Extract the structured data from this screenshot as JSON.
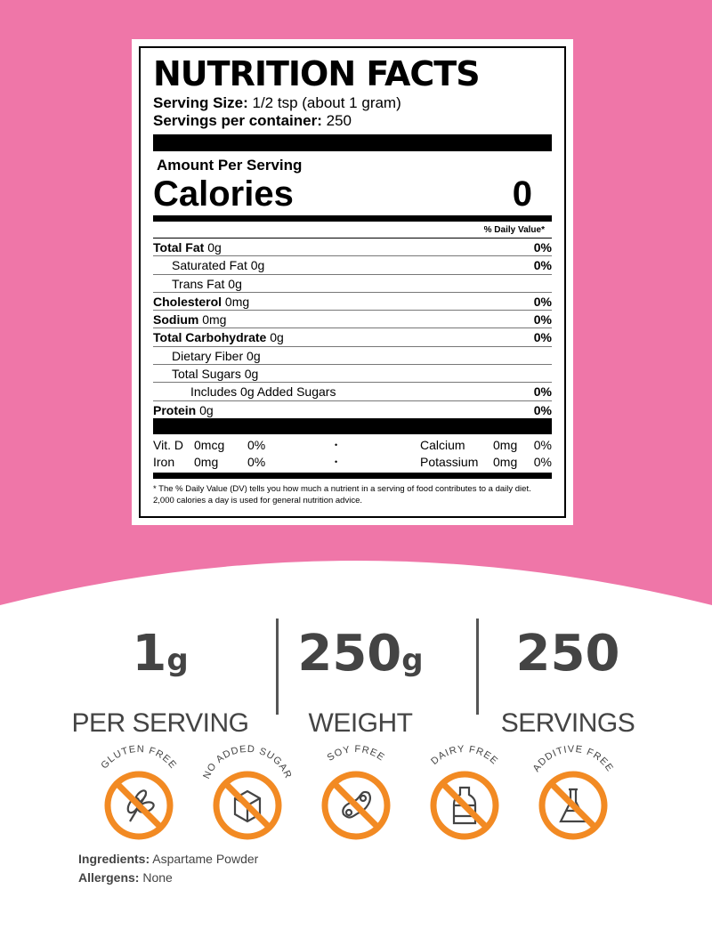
{
  "label": {
    "title": "NUTRITION FACTS",
    "serving_size_label": "Serving Size:",
    "serving_size": "1/2 tsp (about 1 gram)",
    "servings_label": "Servings per container:",
    "servings": "250",
    "amount_per_serving": "Amount Per Serving",
    "calories_label": "Calories",
    "calories": "0",
    "daily_value_header": "% Daily Value*",
    "rows": [
      {
        "name": "Total Fat",
        "amount": "0g",
        "dv": "0%",
        "indent": 0
      },
      {
        "name": "Saturated Fat",
        "amount": "0g",
        "dv": "0%",
        "indent": 1
      },
      {
        "name": "Trans Fat",
        "amount": "0g",
        "dv": "",
        "indent": 1
      },
      {
        "name": "Cholesterol",
        "amount": "0mg",
        "dv": "0%",
        "indent": 0
      },
      {
        "name": "Sodium",
        "amount": "0mg",
        "dv": "0%",
        "indent": 0
      },
      {
        "name": "Total Carbohydrate",
        "amount": "0g",
        "dv": "0%",
        "indent": 0
      },
      {
        "name": "Dietary Fiber",
        "amount": "0g",
        "dv": "",
        "indent": 1
      },
      {
        "name": "Total Sugars",
        "amount": "0g",
        "dv": "",
        "indent": 1
      },
      {
        "name": "Includes 0g Added Sugars",
        "amount": "",
        "dv": "0%",
        "indent": 2
      },
      {
        "name": "Protein",
        "amount": "0g",
        "dv": "0%",
        "indent": 0
      }
    ],
    "vitamins": [
      [
        "Vit. D",
        "0mcg",
        "0%",
        "•",
        "Calcium",
        "0mg",
        "0%"
      ],
      [
        "Iron",
        "0mg",
        "0%",
        "•",
        "Potassium",
        "0mg",
        "0%"
      ]
    ],
    "footnote": "* The % Daily Value (DV) tells you how much a nutrient in a serving of food contributes to a daily diet. 2,000 calories a day is used for general nutrition advice."
  },
  "stats": [
    {
      "value": "1",
      "unit": "g",
      "label": "PER SERVING"
    },
    {
      "value": "250",
      "unit": "g",
      "label": "WEIGHT"
    },
    {
      "value": "250",
      "unit": "",
      "label": "SERVINGS"
    }
  ],
  "badges": [
    {
      "label": "GLUTEN FREE",
      "icon": "wheat-icon"
    },
    {
      "label": "NO ADDED SUGAR",
      "icon": "sugar-cube-icon"
    },
    {
      "label": "SOY FREE",
      "icon": "soybean-icon"
    },
    {
      "label": "DAIRY FREE",
      "icon": "milk-bottle-icon"
    },
    {
      "label": "ADDITIVE FREE",
      "icon": "flask-icon"
    }
  ],
  "ingredients_label": "Ingredients:",
  "ingredients": "Aspartame Powder",
  "allergens_label": "Allergens:",
  "allergens": "None",
  "colors": {
    "background": "#ef76a8",
    "badge": "#f28a23",
    "text": "#444444"
  }
}
